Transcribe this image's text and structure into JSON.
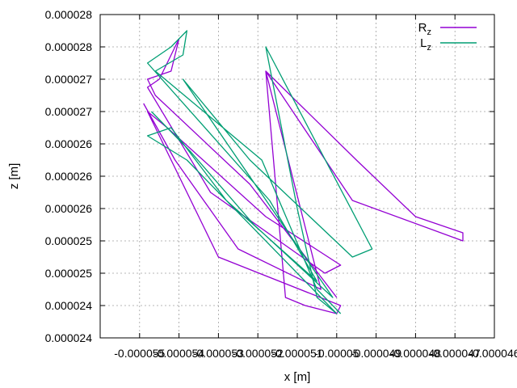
{
  "chart_data": {
    "type": "line",
    "title": "",
    "xlabel": "x [m]",
    "ylabel": "z [m]",
    "xlim": [
      -5.6e-05,
      -4.6e-05
    ],
    "ylim": [
      2.4e-05,
      2.8e-05
    ],
    "x_tick_values": [
      -5.5e-05,
      -5.4e-05,
      -5.3e-05,
      -5.2e-05,
      -5.1e-05,
      -5e-05,
      -4.9e-05,
      -4.8e-05,
      -4.7e-05,
      -4.6e-05
    ],
    "x_tick_labels": [
      "-0.000055",
      "-0.000054",
      "-0.000053",
      "-0.000052",
      "-0.000051",
      "-0.00005",
      "-0.000049",
      "-0.000048",
      "-0.000047",
      "-0.000046"
    ],
    "y_tick_values": [
      2.4e-05,
      2.44e-05,
      2.48e-05,
      2.52e-05,
      2.56e-05,
      2.6e-05,
      2.64e-05,
      2.68e-05,
      2.72e-05,
      2.76e-05,
      2.8e-05
    ],
    "y_tick_labels": [
      "0.000024",
      "0.000024",
      "0.000025",
      "0.000025",
      "0.000026",
      "0.000026",
      "0.000026",
      "0.000027",
      "0.000027",
      "0.000028",
      "0.000028"
    ],
    "grid": true,
    "legend_position": "top-right",
    "series": [
      {
        "name": "R",
        "name_subscript": "z",
        "color": "#9400d3",
        "points": [
          [
            -5.49e-05,
            2.69e-05
          ],
          [
            -5.41e-05,
            2.62e-05
          ],
          [
            -5.25e-05,
            2.51e-05
          ],
          [
            -5.04e-05,
            2.46e-05
          ],
          [
            -5.18e-05,
            2.73e-05
          ],
          [
            -4.95e-05,
            2.62e-05
          ],
          [
            -4.8e-05,
            2.55e-05
          ],
          [
            -4.68e-05,
            2.53e-05
          ],
          [
            -4.68e-05,
            2.52e-05
          ],
          [
            -4.96e-05,
            2.57e-05
          ],
          [
            -5.18e-05,
            2.73e-05
          ],
          [
            -5.13e-05,
            2.45e-05
          ],
          [
            -5.08e-05,
            2.44e-05
          ],
          [
            -5e-05,
            2.43e-05
          ],
          [
            -4.99e-05,
            2.44e-05
          ],
          [
            -5.3e-05,
            2.5e-05
          ],
          [
            -5.48e-05,
            2.68e-05
          ],
          [
            -5.43e-05,
            2.66e-05
          ],
          [
            -5.18e-05,
            2.55e-05
          ],
          [
            -4.99e-05,
            2.49e-05
          ],
          [
            -5.03e-05,
            2.48e-05
          ],
          [
            -5.32e-05,
            2.58e-05
          ],
          [
            -5.48e-05,
            2.71e-05
          ],
          [
            -5.45e-05,
            2.72e-05
          ],
          [
            -5.42e-05,
            2.75e-05
          ],
          [
            -5.4e-05,
            2.77e-05
          ],
          [
            -5.42e-05,
            2.73e-05
          ],
          [
            -5.48e-05,
            2.72e-05
          ],
          [
            -5.46e-05,
            2.7e-05
          ],
          [
            -5.22e-05,
            2.59e-05
          ],
          [
            -5e-05,
            2.45e-05
          ]
        ]
      },
      {
        "name": "L",
        "name_subscript": "z",
        "color": "#009e73",
        "points": [
          [
            -5.47e-05,
            2.68e-05
          ],
          [
            -5.37e-05,
            2.63e-05
          ],
          [
            -5.21e-05,
            2.54e-05
          ],
          [
            -5.01e-05,
            2.45e-05
          ],
          [
            -5.39e-05,
            2.72e-05
          ],
          [
            -5.22e-05,
            2.62e-05
          ],
          [
            -4.96e-05,
            2.5e-05
          ],
          [
            -4.91e-05,
            2.51e-05
          ],
          [
            -5.18e-05,
            2.76e-05
          ],
          [
            -5.1e-05,
            2.56e-05
          ],
          [
            -5.05e-05,
            2.45e-05
          ],
          [
            -5e-05,
            2.43e-05
          ],
          [
            -5.38e-05,
            2.62e-05
          ],
          [
            -5.48e-05,
            2.65e-05
          ],
          [
            -5.42e-05,
            2.66e-05
          ],
          [
            -5.28e-05,
            2.57e-05
          ],
          [
            -5.05e-05,
            2.47e-05
          ],
          [
            -5.17e-05,
            2.57e-05
          ],
          [
            -5.48e-05,
            2.74e-05
          ],
          [
            -5.42e-05,
            2.76e-05
          ],
          [
            -5.38e-05,
            2.78e-05
          ],
          [
            -5.39e-05,
            2.75e-05
          ],
          [
            -5.46e-05,
            2.73e-05
          ],
          [
            -5.19e-05,
            2.62e-05
          ],
          [
            -5.05e-05,
            2.46e-05
          ],
          [
            -4.99e-05,
            2.43e-05
          ]
        ]
      }
    ]
  }
}
